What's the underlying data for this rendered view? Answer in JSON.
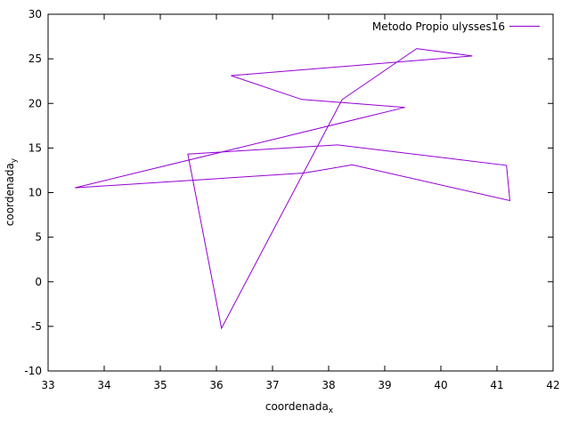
{
  "chart_data": {
    "type": "line",
    "xlabel": {
      "base": "coordenada",
      "sub": "x"
    },
    "ylabel": {
      "base": "coordenada",
      "sub": "y"
    },
    "xlim": [
      33,
      42
    ],
    "ylim": [
      -10,
      30
    ],
    "xticks": [
      33,
      34,
      35,
      36,
      37,
      38,
      39,
      40,
      41,
      42
    ],
    "yticks": [
      -10,
      -5,
      0,
      5,
      10,
      15,
      20,
      25,
      30
    ],
    "grid": false,
    "legend_position": "top-right",
    "series": [
      {
        "name": "Metodo Propio ulysses16",
        "color": "#9400d3",
        "points": [
          [
            38.24,
            20.42
          ],
          [
            39.57,
            26.15
          ],
          [
            40.56,
            25.32
          ],
          [
            36.26,
            23.12
          ],
          [
            37.52,
            20.44
          ],
          [
            39.36,
            19.56
          ],
          [
            33.48,
            10.54
          ],
          [
            37.56,
            12.19
          ],
          [
            38.42,
            13.11
          ],
          [
            41.23,
            9.1
          ],
          [
            41.17,
            13.05
          ],
          [
            38.16,
            15.35
          ],
          [
            35.49,
            14.32
          ],
          [
            36.09,
            -5.21
          ],
          [
            38.24,
            20.42
          ]
        ]
      }
    ]
  }
}
